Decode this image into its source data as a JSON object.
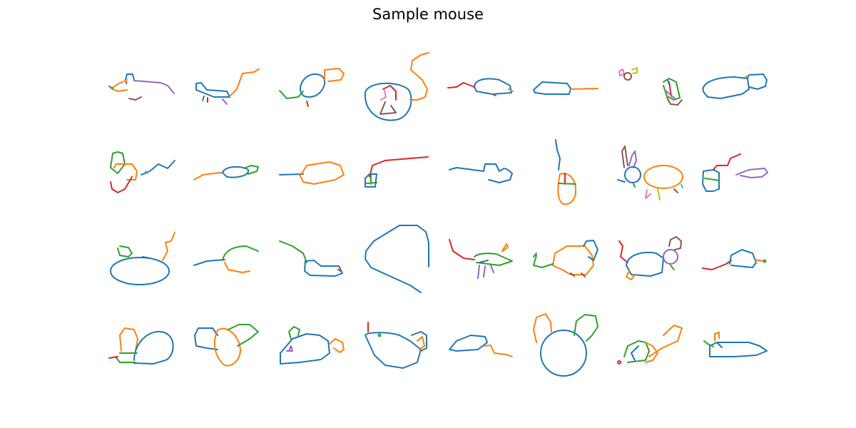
{
  "title": "Sample mouse"
}
